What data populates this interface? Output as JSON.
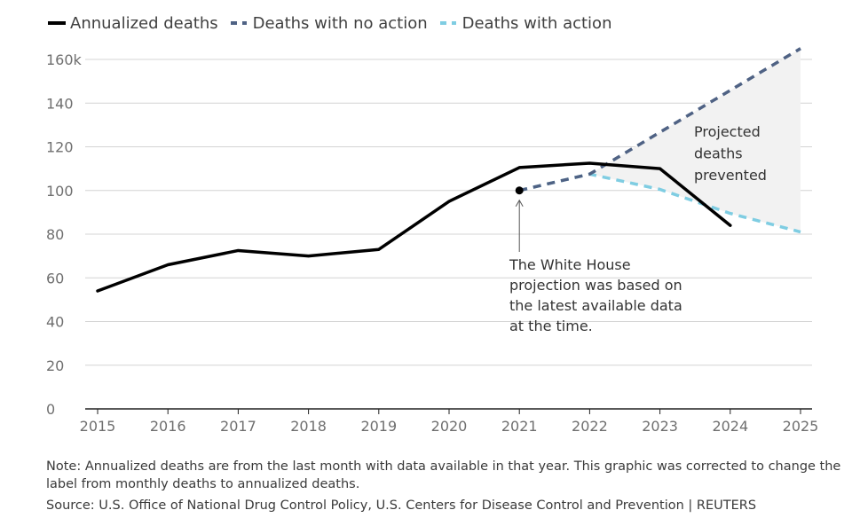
{
  "chart_data": {
    "type": "line",
    "title": "",
    "xlabel": "",
    "ylabel": "",
    "x": [
      2015,
      2016,
      2017,
      2018,
      2019,
      2020,
      2021,
      2022,
      2023,
      2024,
      2025
    ],
    "xlim": [
      2015,
      2025
    ],
    "ylim": [
      0,
      160
    ],
    "y_ticks": [
      0,
      20,
      40,
      60,
      80,
      100,
      120,
      140,
      160
    ],
    "y_tick_labels": [
      "0",
      "20",
      "40",
      "60",
      "80",
      "100",
      "120",
      "140",
      "160k"
    ],
    "x_tick_labels": [
      "2015",
      "2016",
      "2017",
      "2018",
      "2019",
      "2020",
      "2021",
      "2022",
      "2023",
      "2024",
      "2025"
    ],
    "grid": true,
    "series": [
      {
        "name": "Annualized deaths",
        "style": "solid",
        "color": "#000000",
        "x": [
          2015,
          2016,
          2017,
          2018,
          2019,
          2020,
          2021,
          2022,
          2023,
          2024
        ],
        "values": [
          54,
          66,
          72.5,
          70,
          73,
          95,
          110.5,
          112.5,
          110,
          84
        ]
      },
      {
        "name": "Deaths with no action",
        "style": "dashed",
        "color": "#4f6284",
        "x": [
          2021,
          2022,
          2025
        ],
        "values": [
          100,
          107.5,
          165
        ]
      },
      {
        "name": "Deaths with action",
        "style": "dashed",
        "color": "#7fcde2",
        "x": [
          2021,
          2022,
          2023,
          2024,
          2025
        ],
        "values": [
          100,
          107.5,
          100.5,
          89.5,
          81
        ]
      }
    ],
    "start_point": {
      "x": 2021,
      "y": 100
    },
    "shaded_region": {
      "label_lines": [
        "Projected",
        "deaths",
        "prevented"
      ],
      "color": "#f2f2f2"
    },
    "annotation": {
      "lines": [
        "The White House",
        "projection was based on",
        "the latest available data",
        "at the time."
      ],
      "x": 2021
    }
  },
  "legend": {
    "items": [
      {
        "label": "Annualized deaths"
      },
      {
        "label": "Deaths with no action"
      },
      {
        "label": "Deaths with action"
      }
    ]
  },
  "footnote": {
    "note": "Note: Annualized deaths are from the last month with data available in that year. This graphic was corrected to change the label from monthly deaths to annualized deaths.",
    "source": "Source: U.S. Office of National Drug Control Policy, U.S. Centers for Disease Control and Prevention | REUTERS"
  }
}
